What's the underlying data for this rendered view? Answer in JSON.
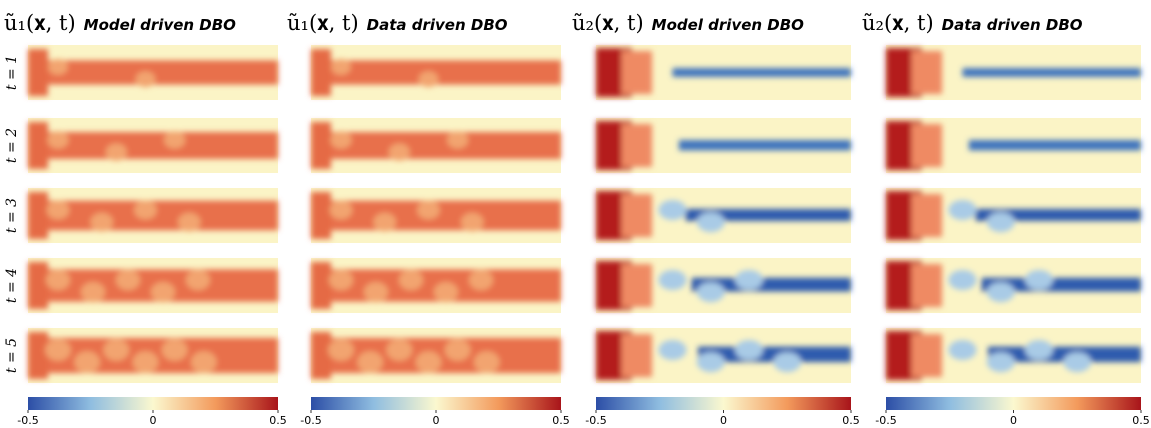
{
  "columns": [
    {
      "symbol": "ũ₁(𝐱, t)",
      "title": "Model driven DBO"
    },
    {
      "symbol": "ũ₁(𝐱, t)",
      "title": "Data driven DBO"
    },
    {
      "symbol": "ũ₂(𝐱, t)",
      "title": "Model driven DBO"
    },
    {
      "symbol": "ũ₂(𝐱, t)",
      "title": "Data driven DBO"
    }
  ],
  "rows": [
    "t = 1",
    "t = 2",
    "t = 3",
    "t = 4",
    "t = 5"
  ],
  "colorbar_ticks": [
    -0.5,
    0,
    0.5
  ]
}
